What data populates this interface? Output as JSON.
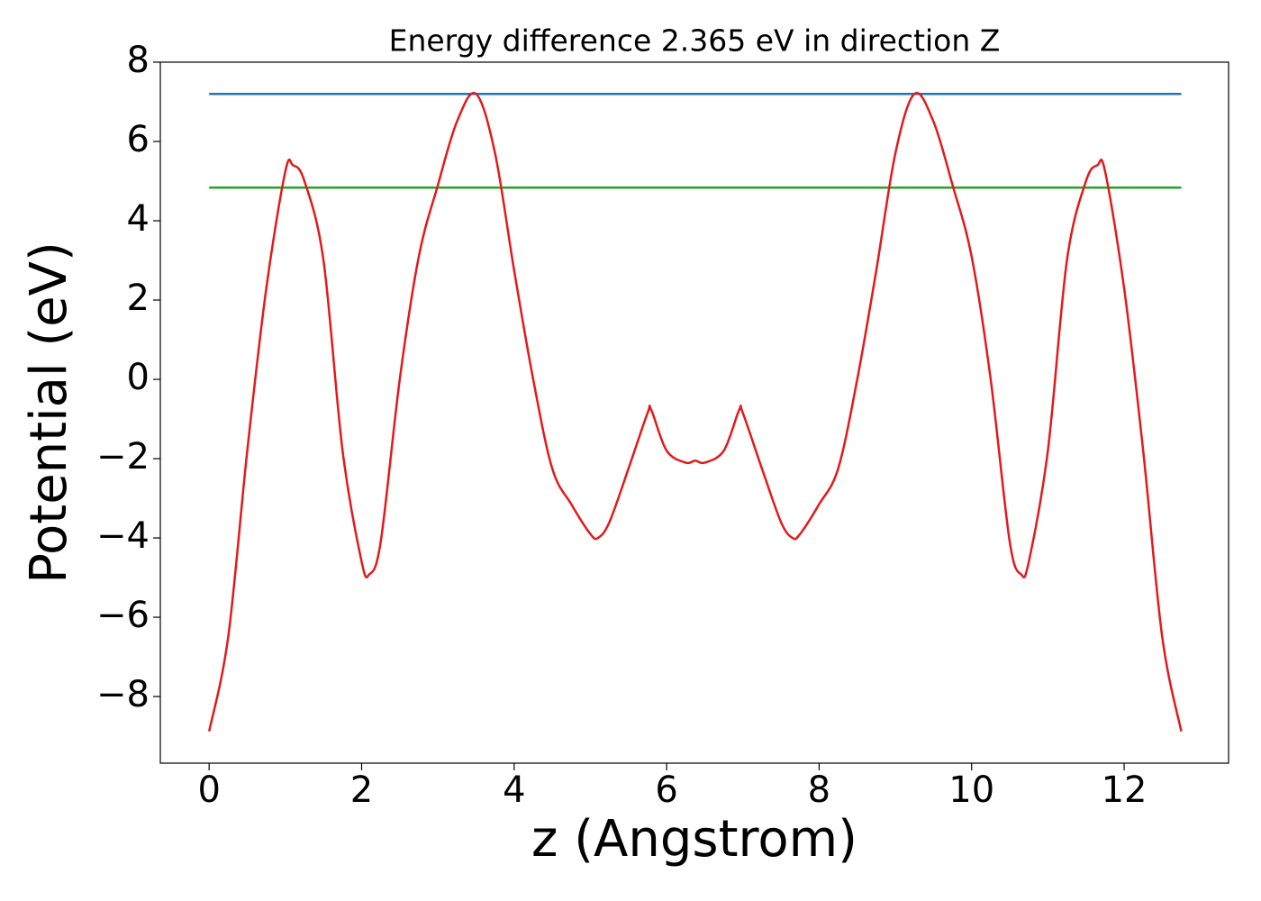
{
  "chart_data": {
    "type": "line",
    "title": "Energy difference 2.365 eV in direction Z",
    "xlabel": "z (Angstrom)",
    "ylabel": "Potential (eV)",
    "xlim": [
      -0.64,
      13.37
    ],
    "ylim": [
      -9.68,
      8.0
    ],
    "xticks": [
      0,
      2,
      4,
      6,
      8,
      10,
      12
    ],
    "yticks": [
      {
        "value": -8,
        "label": "−8"
      },
      {
        "value": -6,
        "label": "−6"
      },
      {
        "value": -4,
        "label": "−4"
      },
      {
        "value": -2,
        "label": "−2"
      },
      0,
      2,
      4,
      6,
      8
    ],
    "series": [
      {
        "color": "#1f77b4",
        "x": [
          0,
          12.75
        ],
        "values": [
          7.2,
          7.2
        ]
      },
      {
        "color": "#2ca02c",
        "x": [
          0,
          12.75
        ],
        "values": [
          4.835,
          4.835
        ]
      },
      {
        "color": "#e31a1c",
        "x": [
          0,
          0.25,
          0.5,
          0.75,
          1.0,
          1.1,
          1.25,
          1.5,
          1.75,
          2.0,
          2.1,
          2.25,
          2.5,
          2.75,
          3.0,
          3.25,
          3.5,
          3.75,
          4.0,
          4.25,
          4.5,
          4.75,
          5.0,
          5.1,
          5.25,
          5.5,
          5.75,
          5.8,
          6.0,
          6.25,
          6.375,
          6.5,
          6.75,
          6.95,
          7.0,
          7.25,
          7.5,
          7.65,
          7.75,
          8.0,
          8.25,
          8.5,
          8.75,
          9.0,
          9.25,
          9.5,
          9.75,
          10.0,
          10.25,
          10.5,
          10.65,
          10.75,
          11.0,
          11.25,
          11.5,
          11.65,
          11.75,
          12.0,
          12.25,
          12.5,
          12.75
        ],
        "values": [
          -8.88,
          -6.5,
          -1.8,
          2.3,
          5.25,
          5.4,
          5.0,
          3.0,
          -1.8,
          -4.6,
          -4.92,
          -4.1,
          0,
          3.1,
          4.9,
          6.5,
          7.2,
          5.7,
          2.75,
          0,
          -2.25,
          -3.15,
          -3.9,
          -4.0,
          -3.6,
          -2.25,
          -0.85,
          -0.78,
          -1.8,
          -2.1,
          -2.05,
          -2.1,
          -1.8,
          -0.78,
          -0.85,
          -2.25,
          -3.6,
          -4.0,
          -3.9,
          -3.15,
          -2.25,
          0,
          2.75,
          5.7,
          7.2,
          6.5,
          4.9,
          3.1,
          0,
          -4.1,
          -4.92,
          -4.6,
          -1.8,
          3.0,
          5.0,
          5.4,
          5.25,
          2.3,
          -1.8,
          -6.5,
          -8.88
        ]
      }
    ]
  }
}
